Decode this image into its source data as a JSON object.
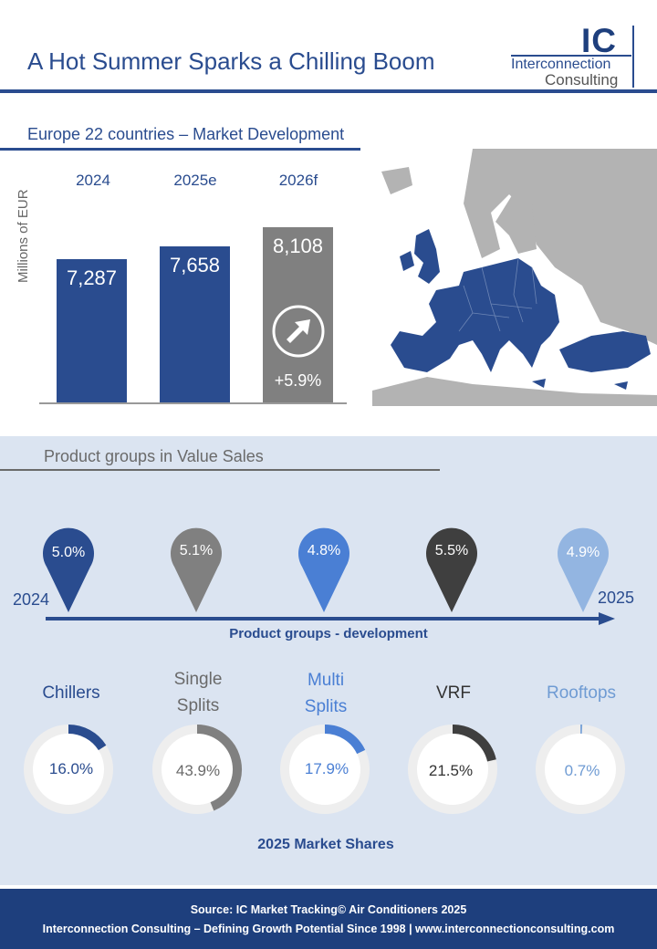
{
  "header": {
    "title": "A Hot Summer Sparks a Chilling Boom",
    "logo_initials": "IC",
    "logo_name_line1": "Interconnection",
    "logo_name_line2": "Consulting"
  },
  "market": {
    "section_title": "Europe 22 countries – Market Development",
    "growth_label": "+5.9%",
    "growth_icon": "arrow-up-right-icon"
  },
  "chart_data": [
    {
      "type": "bar",
      "categories": [
        "2024",
        "2025e",
        "2026f"
      ],
      "values": [
        7287,
        7658,
        8108
      ],
      "value_labels": [
        "7,287",
        "7,658",
        "8,108"
      ],
      "ylabel": "Millions of EUR",
      "colors": [
        "#2a4c8f",
        "#2a4c8f",
        "#808080"
      ]
    },
    {
      "type": "pie",
      "title": "2025 Market Shares",
      "categories": [
        "Chillers",
        "Single Splits",
        "Multi Splits",
        "VRF",
        "Rooftops"
      ],
      "values": [
        16.0,
        43.9,
        17.9,
        21.5,
        0.7
      ],
      "value_labels": [
        "16.0%",
        "43.9%",
        "17.9%",
        "21.5%",
        "0.7%"
      ],
      "colors": [
        "#2a4c8f",
        "#808080",
        "#4a7fd4",
        "#3f3f3f",
        "#7ea6d9"
      ]
    }
  ],
  "products": {
    "section_title": "Product groups in Value Sales",
    "start_year": "2024",
    "end_year": "2025",
    "timeline_label": "Product groups - development",
    "growth_pins": [
      {
        "value": "5.0%",
        "color": "#2a4c8f"
      },
      {
        "value": "5.1%",
        "color": "#808080"
      },
      {
        "value": "4.8%",
        "color": "#4a7fd4"
      },
      {
        "value": "5.5%",
        "color": "#3f3f3f"
      },
      {
        "value": "4.9%",
        "color": "#93b5e1"
      }
    ],
    "categories": [
      {
        "label": "Chillers",
        "color": "#2a4c8f"
      },
      {
        "label": "Single\nSplits",
        "color": "#6a6a6a"
      },
      {
        "label": "Multi\nSplits",
        "color": "#4a7fd4"
      },
      {
        "label": "VRF",
        "color": "#333333"
      },
      {
        "label": "Rooftops",
        "color": "#6f9bd3"
      }
    ],
    "shares_label": "2025 Market Shares"
  },
  "footer": {
    "line1": "Source: IC Market Tracking© Air Conditioners 2025",
    "line2": "Interconnection Consulting – Defining Growth Potential Since 1998 | www.interconnectionconsulting.com"
  }
}
